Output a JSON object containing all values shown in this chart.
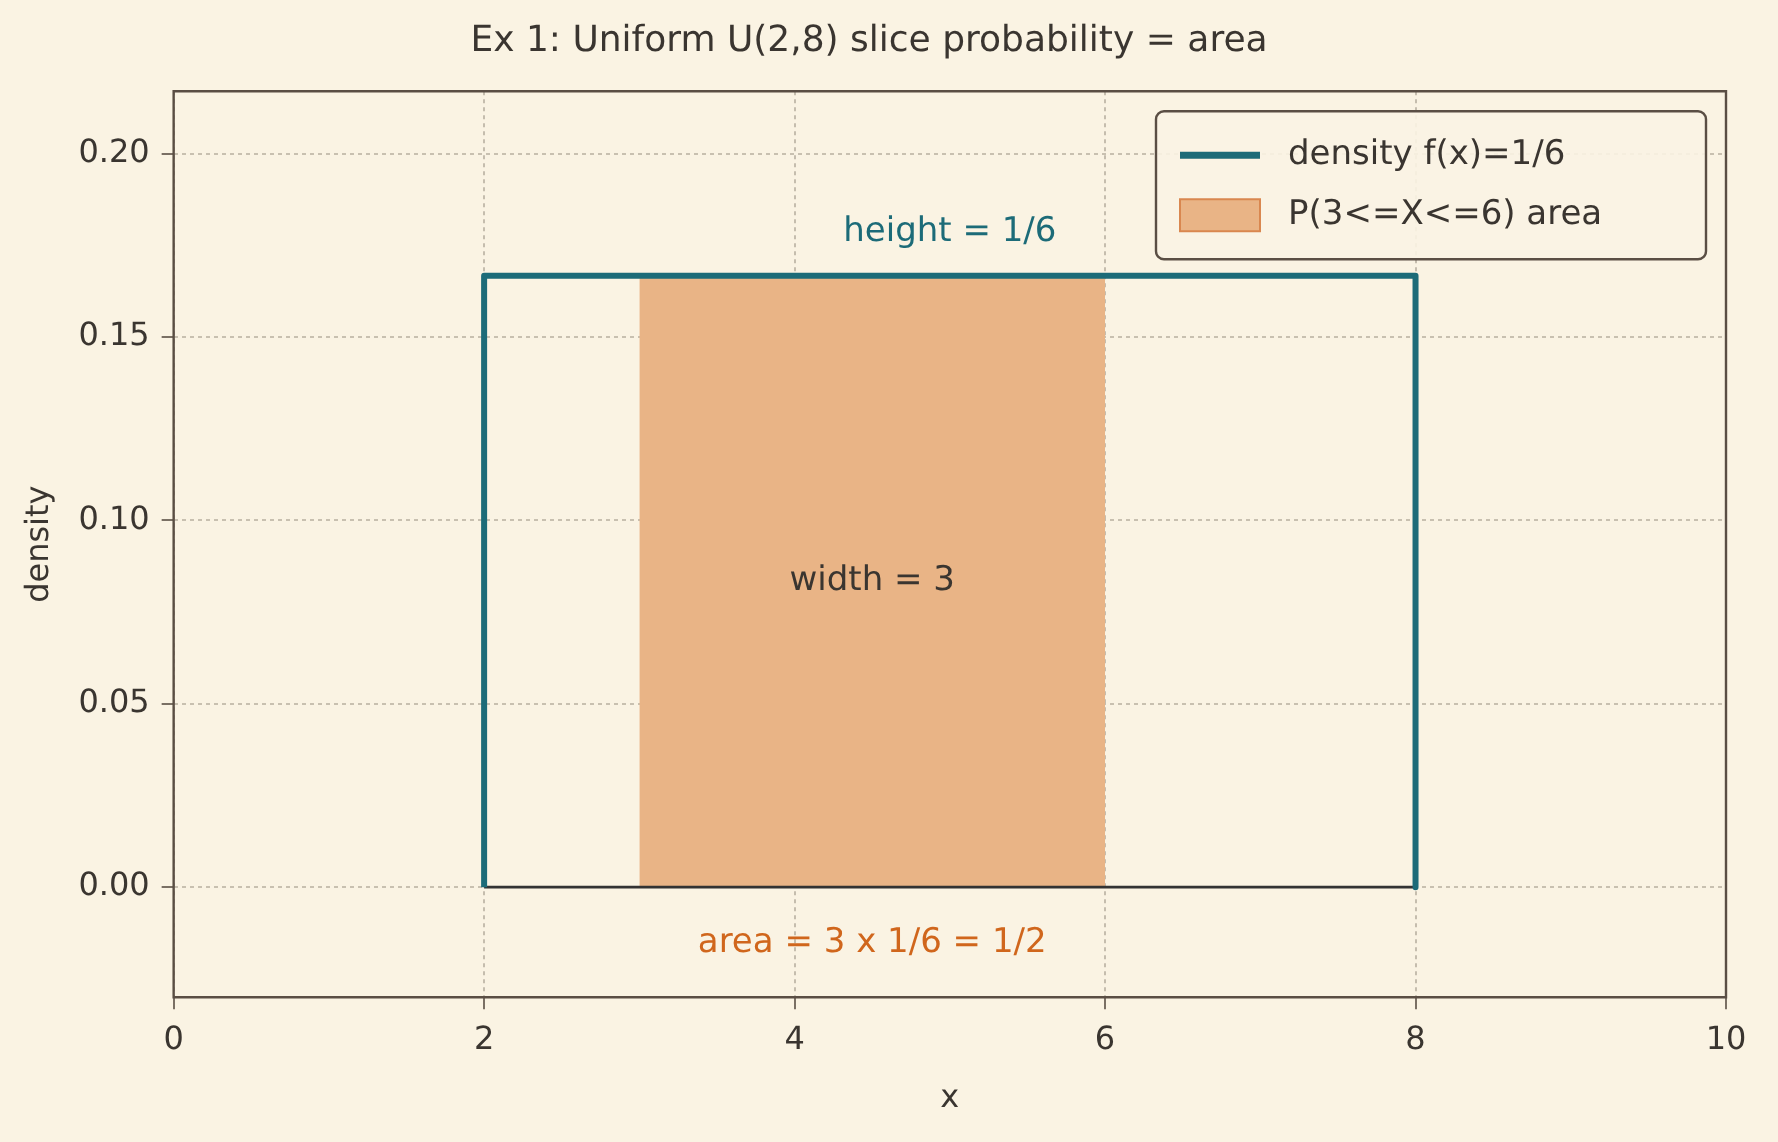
{
  "chart_data": {
    "type": "line",
    "title": "Ex 1: Uniform U(2,8) slice probability = area",
    "xlabel": "x",
    "ylabel": "density",
    "xlim": [
      0,
      10
    ],
    "xticks": [
      0,
      2,
      4,
      6,
      8,
      10
    ],
    "ylim": [
      -0.03,
      0.217
    ],
    "yticks": [
      {
        "value": 0,
        "label": "0.00"
      },
      {
        "value": 0.05,
        "label": "0.05"
      },
      {
        "value": 0.1,
        "label": "0.10"
      },
      {
        "value": 0.15,
        "label": "0.15"
      },
      {
        "value": 0.2,
        "label": "0.20"
      }
    ],
    "grid": true,
    "legend": "top right",
    "marker": "none",
    "series": [
      {
        "name": "density f(x)=1/6",
        "type": "line",
        "color": "#1c6b78",
        "x": [
          2,
          2,
          8,
          8
        ],
        "values": [
          0,
          0.1667,
          0.1667,
          0
        ]
      },
      {
        "name": "P(3<=X<=6) area",
        "type": "area",
        "color": "#e9b486",
        "x": [
          3,
          6
        ],
        "values": [
          0.1667,
          0.1667
        ]
      },
      {
        "type": "line",
        "color": "#333333",
        "x": [
          2,
          8
        ],
        "values": [
          0,
          0
        ]
      }
    ],
    "annotations": [
      "height = 1/6",
      "width = 3",
      "area = 3 x 1/6 = 1/2"
    ]
  }
}
